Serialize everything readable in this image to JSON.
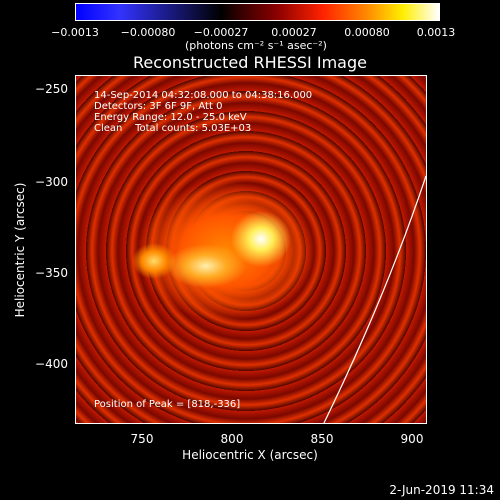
{
  "colorbar": {
    "ticks": [
      "−0.0013",
      "−0.00080",
      "−0.00027",
      "0.00027",
      "0.00080",
      "0.0013"
    ],
    "units": "(photons cm⁻² s⁻¹ asec⁻²)"
  },
  "plot": {
    "title": "Reconstructed RHESSI Image",
    "annotations": {
      "time_range": "14-Sep-2014 04:32:08.000 to 04:38:16.000",
      "detectors": "Detectors: 3F 6F 9F, Att 0",
      "energy": "Energy Range: 12.0 - 25.0 keV",
      "clean": "Clean    Total counts: 5.03E+03",
      "peak": "Position of Peak = [818,-336]"
    },
    "y_ticks": [
      "−250",
      "−300",
      "−350",
      "−400"
    ],
    "x_ticks": [
      "750",
      "800",
      "850",
      "900"
    ],
    "y_label": "Heliocentric Y (arcsec)",
    "x_label": "Heliocentric X (arcsec)"
  },
  "footer": {
    "timestamp": "2-Jun-2019 11:34"
  },
  "colors": {
    "background": "#000000",
    "text": "#ffffff",
    "limb_line": "#ffffff"
  }
}
